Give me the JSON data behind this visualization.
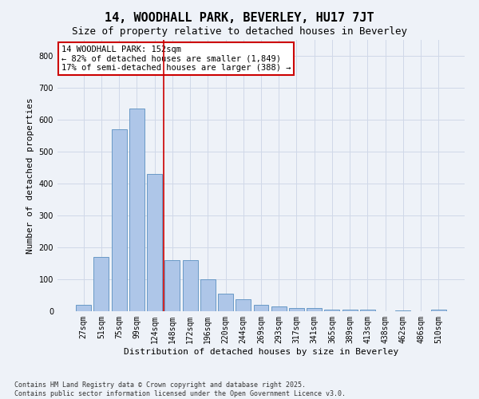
{
  "title": "14, WOODHALL PARK, BEVERLEY, HU17 7JT",
  "subtitle": "Size of property relative to detached houses in Beverley",
  "xlabel": "Distribution of detached houses by size in Beverley",
  "ylabel": "Number of detached properties",
  "categories": [
    "27sqm",
    "51sqm",
    "75sqm",
    "99sqm",
    "124sqm",
    "148sqm",
    "172sqm",
    "196sqm",
    "220sqm",
    "244sqm",
    "269sqm",
    "293sqm",
    "317sqm",
    "341sqm",
    "365sqm",
    "389sqm",
    "413sqm",
    "438sqm",
    "462sqm",
    "486sqm",
    "510sqm"
  ],
  "values": [
    20,
    170,
    570,
    635,
    430,
    160,
    160,
    100,
    55,
    37,
    20,
    14,
    9,
    9,
    5,
    5,
    4,
    1,
    2,
    1,
    4
  ],
  "bar_color": "#aec6e8",
  "bar_edge_color": "#5a8fc0",
  "grid_color": "#d0d8e8",
  "bg_color": "#eef2f8",
  "vline_x": 4.5,
  "vline_color": "#cc0000",
  "annotation_text": "14 WOODHALL PARK: 152sqm\n← 82% of detached houses are smaller (1,849)\n17% of semi-detached houses are larger (388) →",
  "annotation_box_color": "#cc0000",
  "annotation_text_color": "#000000",
  "footnote": "Contains HM Land Registry data © Crown copyright and database right 2025.\nContains public sector information licensed under the Open Government Licence v3.0.",
  "ylim": [
    0,
    850
  ],
  "yticks": [
    0,
    100,
    200,
    300,
    400,
    500,
    600,
    700,
    800
  ],
  "title_fontsize": 11,
  "subtitle_fontsize": 9,
  "xlabel_fontsize": 8,
  "ylabel_fontsize": 8,
  "tick_fontsize": 7,
  "annotation_fontsize": 7.5,
  "footnote_fontsize": 6
}
